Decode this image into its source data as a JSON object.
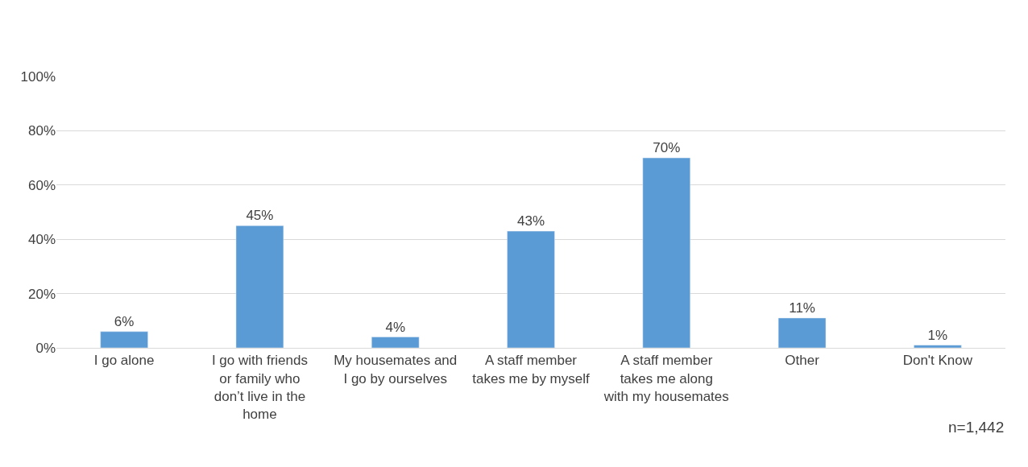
{
  "chart_data": {
    "type": "bar",
    "categories": [
      "I go alone",
      "I go with friends or family who don’t live in the home",
      "My housemates and I go by ourselves",
      "A staff member takes me by myself",
      "A staff member takes me along with my housemates",
      "Other",
      "Don't Know"
    ],
    "values": [
      6,
      45,
      4,
      43,
      70,
      11,
      1
    ],
    "value_labels": [
      "6%",
      "45%",
      "4%",
      "43%",
      "70%",
      "11%",
      "1%"
    ],
    "color": "#5b9bd5",
    "ylim": [
      0,
      100
    ],
    "yticks": [
      {
        "value": 0,
        "label": "0%"
      },
      {
        "value": 20,
        "label": "20%"
      },
      {
        "value": 40,
        "label": "40%"
      },
      {
        "value": 60,
        "label": "60%"
      },
      {
        "value": 80,
        "label": "80%"
      },
      {
        "value": 100,
        "label": "100%"
      }
    ],
    "grid": "y",
    "legend": false,
    "annotations": [
      "n=1,442"
    ]
  }
}
